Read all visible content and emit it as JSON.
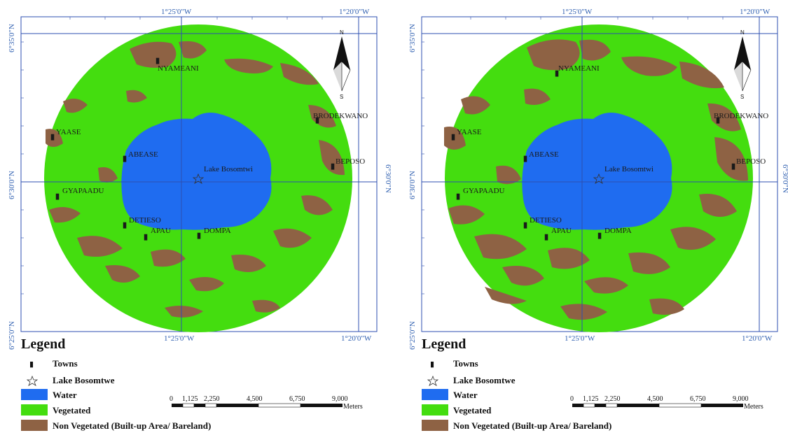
{
  "maps": [
    {
      "coords": {
        "top_left_lon": "1°25'0\"W",
        "top_right_lon": "1°20'0\"W",
        "bottom_left_lon": "1°25'0\"W",
        "bottom_right_lon": "1°20'0\"W",
        "left_top_lat": "6°35'0\"N",
        "left_mid_lat": "6°30'0\"N",
        "left_bottom_lat": "6°25'0\"N",
        "right_mid_lat": "6°30'0\"N"
      },
      "towns": [
        "NYAMEANI",
        "BRODEKWANO",
        "YAASE",
        "ABEASE",
        "BEPOSO",
        "GYAPAADU",
        "DETIESO",
        "APAU",
        "DOMPA"
      ],
      "lake_label": "Lake Bosomtwi",
      "north": {
        "n": "N",
        "s": "S"
      },
      "legend": {
        "title": "Legend",
        "items": [
          "Towns",
          "Lake Bosomtwe",
          "Water",
          "Vegetated",
          "Non Vegetated (Built-up Area/ Bareland)"
        ]
      },
      "scale": {
        "ticks": [
          "0",
          "1,125",
          "2,250",
          "4,500",
          "6,750",
          "9,000"
        ],
        "unit": "Meters"
      }
    },
    {
      "coords": {
        "top_left_lon": "1°25'0\"W",
        "top_right_lon": "1°20'0\"W",
        "bottom_left_lon": "1°25'0\"W",
        "bottom_right_lon": "1°20'0\"W",
        "left_top_lat": "6°35'0\"N",
        "left_mid_lat": "6°30'0\"N",
        "left_bottom_lat": "6°25'0\"N",
        "right_mid_lat": "6°30'0\"N"
      },
      "towns": [
        "NYAMEANI",
        "BRODEKWANO",
        "YAASE",
        "ABEASE",
        "BEPOSO",
        "GYAPAADU",
        "DETIESO",
        "APAU",
        "DOMPA"
      ],
      "lake_label": "Lake Bosomtwi",
      "north": {
        "n": "N",
        "s": "S"
      },
      "legend": {
        "title": "Legend",
        "items": [
          "Towns",
          "Lake Bosomtwe",
          "Water",
          "Vegetated",
          "Non Vegetated (Built-up Area/ Bareland)"
        ]
      },
      "scale": {
        "ticks": [
          "0",
          "1,125",
          "2,250",
          "4,500",
          "6,750",
          "9,000"
        ],
        "unit": "Meters"
      }
    }
  ],
  "colors": {
    "water": "#1f6cf0",
    "vegetated": "#44dd0f",
    "non_vegetated": "#8e6244",
    "grid": "#2d4fb0"
  }
}
